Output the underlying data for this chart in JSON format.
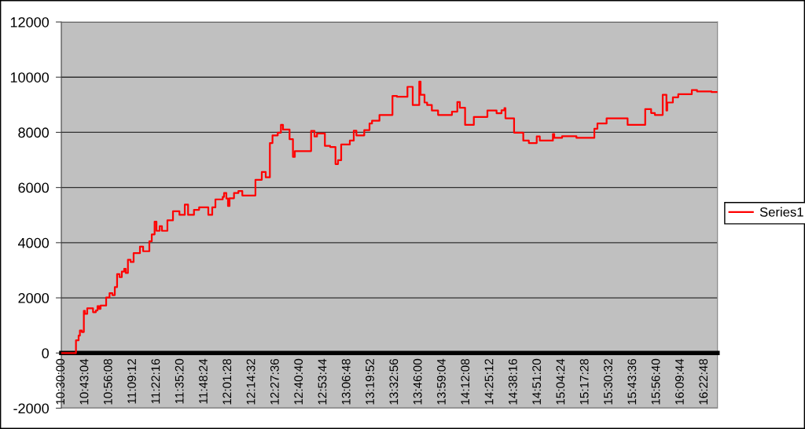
{
  "chart_data": {
    "type": "step",
    "xlim": [
      10.5,
      16.5
    ],
    "xticks": [
      {
        "value": 10.5,
        "label": "10:30:00"
      },
      {
        "value": 10.7178,
        "label": "10:43:04"
      },
      {
        "value": 10.9356,
        "label": "10:56:08"
      },
      {
        "value": 11.1533,
        "label": "11:09:12"
      },
      {
        "value": 11.3711,
        "label": "11:22:16"
      },
      {
        "value": 11.5889,
        "label": "11:35:20"
      },
      {
        "value": 11.8067,
        "label": "11:48:24"
      },
      {
        "value": 12.0244,
        "label": "12:01:28"
      },
      {
        "value": 12.2422,
        "label": "12:14:32"
      },
      {
        "value": 12.46,
        "label": "12:27:36"
      },
      {
        "value": 12.6778,
        "label": "12:40:40"
      },
      {
        "value": 12.8956,
        "label": "12:53:44"
      },
      {
        "value": 13.1133,
        "label": "13:06:48"
      },
      {
        "value": 13.3311,
        "label": "13:19:52"
      },
      {
        "value": 13.5489,
        "label": "13:32:56"
      },
      {
        "value": 13.7667,
        "label": "13:46:00"
      },
      {
        "value": 13.9844,
        "label": "13:59:04"
      },
      {
        "value": 14.2022,
        "label": "14:12:08"
      },
      {
        "value": 14.42,
        "label": "14:25:12"
      },
      {
        "value": 14.6378,
        "label": "14:38:16"
      },
      {
        "value": 14.8556,
        "label": "14:51:20"
      },
      {
        "value": 15.0733,
        "label": "15:04:24"
      },
      {
        "value": 15.2911,
        "label": "15:17:28"
      },
      {
        "value": 15.5089,
        "label": "15:30:32"
      },
      {
        "value": 15.7267,
        "label": "15:43:36"
      },
      {
        "value": 15.9444,
        "label": "15:56:40"
      },
      {
        "value": 16.1622,
        "label": "16:09:44"
      },
      {
        "value": 16.38,
        "label": "16:22:48"
      }
    ],
    "ylim": [
      -2000,
      12000
    ],
    "yticks": [
      -2000,
      0,
      2000,
      4000,
      6000,
      8000,
      10000,
      12000
    ],
    "grid": "y",
    "legend": "right",
    "line_style": "solid",
    "x": [
      10.5,
      10.634,
      10.658,
      10.67,
      10.687,
      10.706,
      10.716,
      10.737,
      10.79,
      10.816,
      10.831,
      10.845,
      10.859,
      10.91,
      10.941,
      10.967,
      10.989,
      11.01,
      11.032,
      11.053,
      11.075,
      11.089,
      11.109,
      11.133,
      11.161,
      11.219,
      11.248,
      11.305,
      11.327,
      11.353,
      11.37,
      11.399,
      11.42,
      11.47,
      11.521,
      11.58,
      11.629,
      11.659,
      11.713,
      11.76,
      11.844,
      11.88,
      11.909,
      11.976,
      11.988,
      12.009,
      12.024,
      12.038,
      12.079,
      12.119,
      12.155,
      12.275,
      12.333,
      12.369,
      12.407,
      12.431,
      12.479,
      12.508,
      12.527,
      12.587,
      12.618,
      12.635,
      12.784,
      12.815,
      12.838,
      12.91,
      12.958,
      13.007,
      13.03,
      13.059,
      13.138,
      13.174,
      13.198,
      13.27,
      13.318,
      13.341,
      13.409,
      13.528,
      13.569,
      13.665,
      13.713,
      13.773,
      13.785,
      13.821,
      13.845,
      13.888,
      13.945,
      14.072,
      14.121,
      14.144,
      14.192,
      14.272,
      14.396,
      14.48,
      14.525,
      14.552,
      14.561,
      14.64,
      14.724,
      14.775,
      14.847,
      14.875,
      14.995,
      15.007,
      15.079,
      15.21,
      15.374,
      15.402,
      15.486,
      15.678,
      15.839,
      15.893,
      15.927,
      15.999,
      16.033,
      16.04,
      16.092,
      16.141,
      16.265,
      16.313,
      16.445,
      16.5
    ],
    "series": [
      {
        "name": "Series1",
        "color": "#ff0000",
        "values": [
          0,
          460,
          630,
          820,
          760,
          1530,
          1420,
          1620,
          1480,
          1540,
          1700,
          1600,
          1720,
          2010,
          2170,
          2100,
          2390,
          2860,
          2750,
          2950,
          3050,
          2900,
          3380,
          3300,
          3620,
          3860,
          3690,
          4050,
          4300,
          4760,
          4430,
          4600,
          4430,
          4810,
          5140,
          5010,
          5380,
          5010,
          5190,
          5280,
          5010,
          5280,
          5570,
          5660,
          5800,
          5600,
          5330,
          5610,
          5800,
          5870,
          5710,
          6280,
          6560,
          6370,
          7610,
          7890,
          7990,
          8270,
          8100,
          7750,
          7110,
          7320,
          8050,
          7850,
          7960,
          7510,
          7470,
          6850,
          6990,
          7560,
          7700,
          8060,
          7890,
          8080,
          8320,
          8420,
          8630,
          9320,
          9290,
          9650,
          8990,
          9840,
          9360,
          9080,
          8990,
          8790,
          8630,
          8750,
          9100,
          8890,
          8270,
          8560,
          8790,
          8690,
          8800,
          8880,
          8510,
          7990,
          7700,
          7610,
          7850,
          7700,
          7940,
          7800,
          7860,
          7800,
          8130,
          8320,
          8510,
          8270,
          8840,
          8700,
          8630,
          9360,
          8790,
          9080,
          9270,
          9380,
          9530,
          9480,
          9460,
          9460
        ]
      }
    ]
  }
}
